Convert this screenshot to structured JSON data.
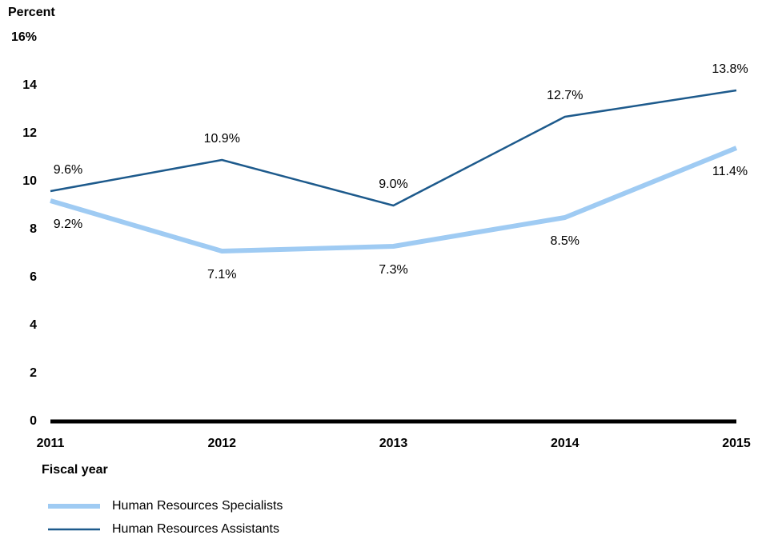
{
  "chart_data": {
    "type": "line",
    "y_label": "Percent",
    "x_label": "Fiscal year",
    "categories": [
      "2011",
      "2012",
      "2013",
      "2014",
      "2015"
    ],
    "series": [
      {
        "name": "Human Resources Specialists",
        "color": "#9fcbf3",
        "values": [
          9.2,
          7.1,
          7.3,
          8.5,
          11.4
        ],
        "value_labels": [
          "9.2%",
          "7.1%",
          "7.3%",
          "8.5%",
          "11.4%"
        ]
      },
      {
        "name": "Human Resources Assistants",
        "color": "#1d5a8c",
        "values": [
          9.6,
          10.9,
          9.0,
          12.7,
          13.8
        ],
        "value_labels": [
          "9.6%",
          "10.9%",
          "9.0%",
          "12.7%",
          "13.8%"
        ]
      }
    ],
    "ylim": [
      0,
      16
    ],
    "yticks": [
      0,
      2,
      4,
      6,
      8,
      10,
      12,
      14,
      {
        "value": 16,
        "label": "16%"
      }
    ],
    "grid": false
  }
}
